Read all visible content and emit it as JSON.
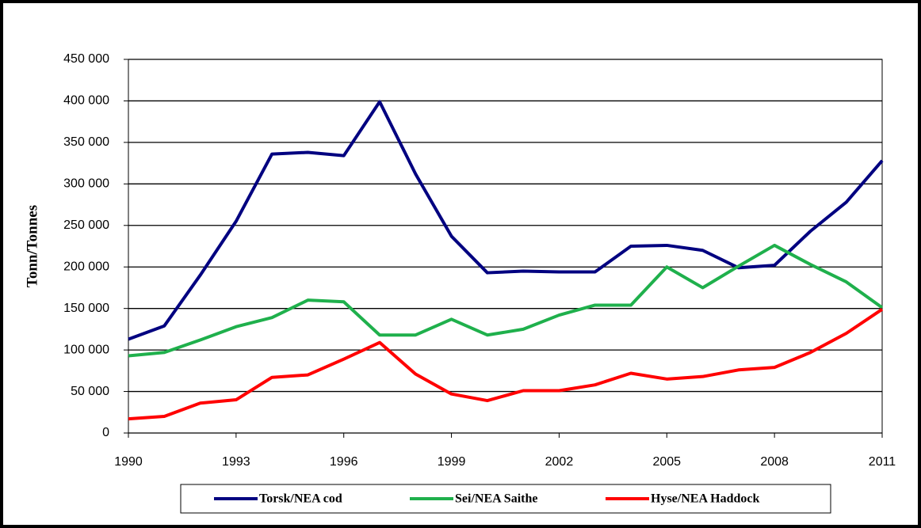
{
  "chart_data": {
    "type": "line",
    "y_label": "Tonn/Tonnes",
    "x": [
      1990,
      1991,
      1992,
      1993,
      1994,
      1995,
      1996,
      1997,
      1998,
      1999,
      2000,
      2001,
      2002,
      2003,
      2004,
      2005,
      2006,
      2007,
      2008,
      2009,
      2010,
      2011
    ],
    "series": [
      {
        "name": "Torsk/NEA cod",
        "color": "#000080",
        "values": [
          113000,
          129000,
          190000,
          255000,
          336000,
          338000,
          334000,
          399000,
          312000,
          237000,
          193000,
          195000,
          194000,
          194000,
          225000,
          226000,
          220000,
          199000,
          202000,
          243000,
          278000,
          328000
        ]
      },
      {
        "name": "Sei/NEA Saithe",
        "color": "#1fb04c",
        "values": [
          93000,
          97000,
          112000,
          128000,
          139000,
          160000,
          158000,
          118000,
          118000,
          137000,
          118000,
          125000,
          142000,
          154000,
          154000,
          200000,
          175000,
          201000,
          226000,
          203000,
          182000,
          151000
        ]
      },
      {
        "name": "Hyse/NEA Haddock",
        "color": "#ff0000",
        "values": [
          17000,
          20000,
          36000,
          40000,
          67000,
          70000,
          89000,
          109000,
          71000,
          47000,
          39000,
          51000,
          51000,
          58000,
          72000,
          65000,
          68000,
          76000,
          79000,
          97000,
          120000,
          149000
        ]
      }
    ],
    "xlim": [
      1990,
      2011
    ],
    "xticks": [
      1990,
      1993,
      1996,
      1999,
      2002,
      2005,
      2008,
      2011
    ],
    "ylim": [
      0,
      450000
    ],
    "yticks": [
      0,
      {
        "value": 50000,
        "label": "50 000"
      },
      {
        "value": 100000,
        "label": "100 000"
      },
      {
        "value": 150000,
        "label": "150 000"
      },
      {
        "value": 200000,
        "label": "200 000"
      },
      {
        "value": 250000,
        "label": "250 000"
      },
      {
        "value": 300000,
        "label": "300 000"
      },
      {
        "value": 350000,
        "label": "350 000"
      },
      {
        "value": 400000,
        "label": "400 000"
      },
      {
        "value": 450000,
        "label": "450 000"
      }
    ],
    "grid": true
  }
}
